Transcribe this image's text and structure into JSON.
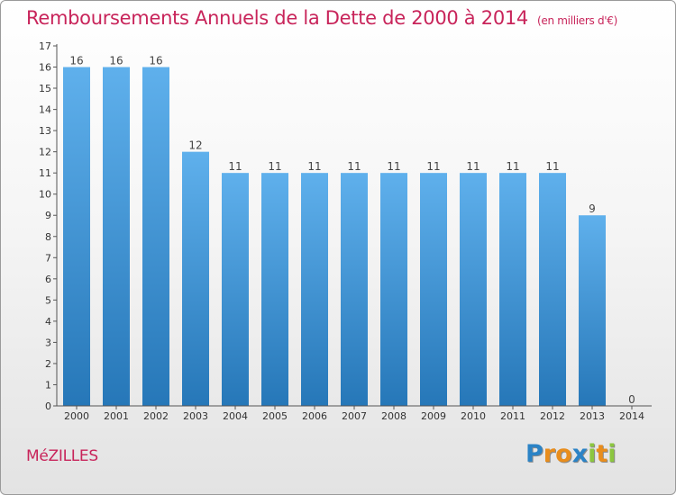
{
  "header": {
    "title": "Remboursements Annuels de la Dette de 2000 à 2014",
    "subtitle": "(en milliers d'€)"
  },
  "footer": {
    "place": "MéZILLES",
    "logo": [
      "P",
      "r",
      "o",
      "x",
      "i",
      "t",
      "i"
    ]
  },
  "colors": {
    "title": "#c8245a",
    "bar_light": "#5fb0ec",
    "bar_dark": "#2677b8",
    "logo": [
      "#2b83c6",
      "#e88d1c",
      "#e88d1c",
      "#2b83c6",
      "#8cc63f",
      "#e88d1c",
      "#8cc63f"
    ]
  },
  "chart_data": {
    "type": "bar",
    "title": "Remboursements Annuels de la Dette de 2000 à 2014",
    "subtitle": "(en milliers d'€)",
    "categories": [
      "2000",
      "2001",
      "2002",
      "2003",
      "2004",
      "2005",
      "2006",
      "2007",
      "2008",
      "2009",
      "2010",
      "2011",
      "2012",
      "2013",
      "2014"
    ],
    "values": [
      16,
      16,
      16,
      12,
      11,
      11,
      11,
      11,
      11,
      11,
      11,
      11,
      11,
      9,
      0
    ],
    "ylim": [
      0,
      17
    ],
    "yticks": [
      0,
      1,
      2,
      3,
      4,
      5,
      6,
      7,
      8,
      9,
      10,
      11,
      12,
      13,
      14,
      15,
      16,
      17
    ],
    "grid": false
  }
}
